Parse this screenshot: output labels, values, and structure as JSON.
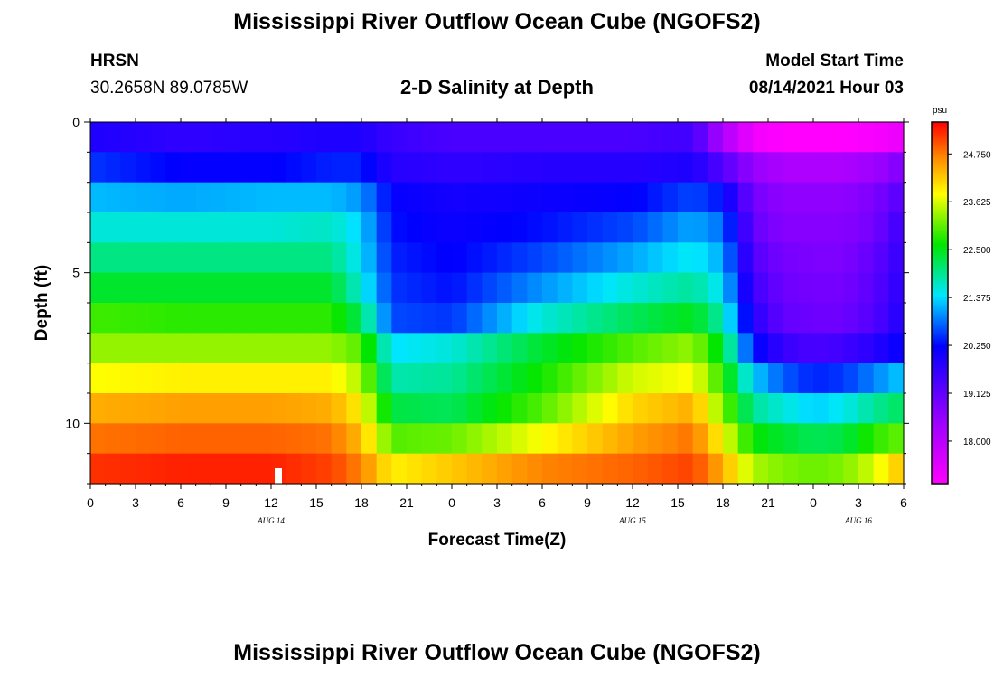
{
  "header": {
    "title": "Mississippi River Outflow Ocean Cube (NGOFS2)",
    "station": "HRSN",
    "coords": "30.2658N  89.0785W",
    "subtitle": "2-D Salinity at Depth",
    "model_start_label": "Model Start Time",
    "model_start_value": "08/14/2021 Hour 03"
  },
  "footer": {
    "title": "Mississippi River Outflow Ocean Cube (NGOFS2)"
  },
  "chart_data": {
    "type": "heatmap",
    "title": "2-D Salinity at Depth",
    "xlabel": "Forecast Time(Z)",
    "ylabel": "Depth (ft)",
    "x_range_hours": [
      0,
      54
    ],
    "y_range_ft": [
      0,
      12
    ],
    "x_tick_labels": [
      "0",
      "3",
      "6",
      "9",
      "12",
      "15",
      "18",
      "21",
      "0",
      "3",
      "6",
      "9",
      "12",
      "15",
      "18",
      "21",
      "0",
      "3",
      "6"
    ],
    "y_ticks": [
      0,
      5,
      10
    ],
    "date_labels": [
      {
        "text": "AUG 14",
        "hour": 12
      },
      {
        "text": "AUG 15",
        "hour": 36
      },
      {
        "text": "AUG 16",
        "hour": 51
      }
    ],
    "colorbar": {
      "units": "psu",
      "min": 17.0,
      "max": 25.5,
      "labels": [
        "24.750",
        "23.625",
        "22.500",
        "21.375",
        "20.250",
        "19.125",
        "18.000"
      ]
    },
    "depth_levels_ft": [
      0.5,
      1.5,
      2.5,
      3.5,
      4.5,
      5.5,
      6.5,
      7.5,
      8.5,
      9.5,
      10.5,
      11.5
    ],
    "time_hours": [
      0,
      6,
      12,
      16,
      18,
      20,
      24,
      30,
      36,
      40,
      42,
      44,
      46,
      48,
      50,
      52,
      54
    ],
    "salinity_psu": [
      [
        19.9,
        19.7,
        19.8,
        19.9,
        19.9,
        19.6,
        19.4,
        19.4,
        19.4,
        19.5,
        18.2,
        17.2,
        17.0,
        17.0,
        17.0,
        17.1,
        17.3
      ],
      [
        20.5,
        20.2,
        20.2,
        20.4,
        20.4,
        19.8,
        19.7,
        19.8,
        19.8,
        19.9,
        19.3,
        18.5,
        18.2,
        18.2,
        18.2,
        18.4,
        18.8
      ],
      [
        21.2,
        21.1,
        21.2,
        21.2,
        21.0,
        20.2,
        20.0,
        20.1,
        20.2,
        20.6,
        20.3,
        18.9,
        18.6,
        18.6,
        18.6,
        18.8,
        19.3
      ],
      [
        21.6,
        21.6,
        21.6,
        21.7,
        21.3,
        20.3,
        20.1,
        20.3,
        20.6,
        21.1,
        20.8,
        19.1,
        18.7,
        18.7,
        18.7,
        18.9,
        19.6
      ],
      [
        22.0,
        22.0,
        22.0,
        22.0,
        21.4,
        20.4,
        20.2,
        20.6,
        21.1,
        21.5,
        21.1,
        19.3,
        18.9,
        18.8,
        18.8,
        19.1,
        19.7
      ],
      [
        22.4,
        22.4,
        22.4,
        22.4,
        21.6,
        20.5,
        20.3,
        21.0,
        21.6,
        21.9,
        21.4,
        19.5,
        19.0,
        18.9,
        18.9,
        19.2,
        19.8
      ],
      [
        22.9,
        22.8,
        22.8,
        22.8,
        22.2,
        20.6,
        20.5,
        21.6,
        22.2,
        22.5,
        21.8,
        19.8,
        19.1,
        19.0,
        19.0,
        19.3,
        19.9
      ],
      [
        23.3,
        23.3,
        23.3,
        23.3,
        23.0,
        21.4,
        21.6,
        22.4,
        23.0,
        23.3,
        22.4,
        20.3,
        19.6,
        19.4,
        19.5,
        19.8,
        20.2
      ],
      [
        23.8,
        23.9,
        23.9,
        23.9,
        23.4,
        21.8,
        21.9,
        22.7,
        23.6,
        23.8,
        22.8,
        21.3,
        20.7,
        20.4,
        20.5,
        20.9,
        21.3
      ],
      [
        24.4,
        24.5,
        24.5,
        24.4,
        23.9,
        22.3,
        22.2,
        23.0,
        24.1,
        24.4,
        23.2,
        21.9,
        21.6,
        21.3,
        21.5,
        21.9,
        22.2
      ],
      [
        24.8,
        24.9,
        24.9,
        24.8,
        24.3,
        23.0,
        23.1,
        23.8,
        24.5,
        24.8,
        23.8,
        22.6,
        22.4,
        22.2,
        22.3,
        22.8,
        23.1
      ],
      [
        25.2,
        25.3,
        25.3,
        25.1,
        24.7,
        23.9,
        24.2,
        24.7,
        24.9,
        25.1,
        24.4,
        23.4,
        23.2,
        23.1,
        23.2,
        23.6,
        24.3
      ]
    ]
  }
}
